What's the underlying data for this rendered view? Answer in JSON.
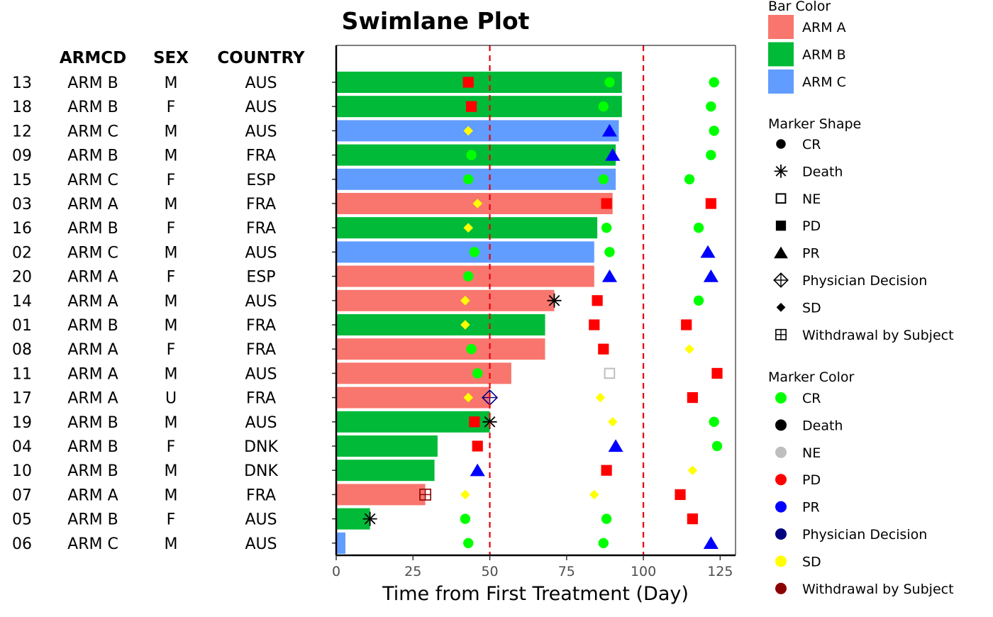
{
  "chart_data": {
    "type": "bar",
    "title": "Swimlane Plot",
    "xlabel": "Time from First Treatment (Day)",
    "ylabel": "",
    "xlim": [
      0,
      130
    ],
    "xticks": [
      0,
      25,
      50,
      75,
      100,
      125
    ],
    "reference_lines": [
      50,
      100
    ],
    "table_headers": [
      "ARMCD",
      "SEX",
      "COUNTRY"
    ],
    "arm_colors": {
      "ARM A": "#f8766d",
      "ARM B": "#00ba38",
      "ARM C": "#619cff"
    },
    "marker_colors": {
      "CR": "#00ff00",
      "Death": "#000000",
      "NE": "#bebebe",
      "PD": "#ff0000",
      "PR": "#0000ff",
      "Physician Decision": "#000080",
      "SD": "#ffff00",
      "Withdrawal by Subject": "#8b0000"
    },
    "marker_shapes": {
      "CR": "circle",
      "Death": "asterisk",
      "NE": "open-square",
      "PD": "square",
      "PR": "triangle",
      "Physician Decision": "crossed-diamond",
      "SD": "diamond",
      "Withdrawal by Subject": "crossed-square"
    },
    "legend": {
      "bar_color_title": "Bar Color",
      "bar_color_items": [
        "ARM A",
        "ARM B",
        "ARM C"
      ],
      "shape_title": "Marker Shape",
      "shape_items": [
        "CR",
        "Death",
        "NE",
        "PD",
        "PR",
        "Physician Decision",
        "SD",
        "Withdrawal by Subject"
      ],
      "color_title": "Marker Color",
      "color_items": [
        "CR",
        "Death",
        "NE",
        "PD",
        "PR",
        "Physician Decision",
        "SD",
        "Withdrawal by Subject"
      ]
    },
    "subjects": [
      {
        "id": "13",
        "arm": "ARM B",
        "sex": "M",
        "country": "AUS",
        "duration": 93,
        "markers": [
          {
            "x": 43,
            "status": "PD"
          },
          {
            "x": 89,
            "status": "CR"
          },
          {
            "x": 123,
            "status": "CR"
          }
        ]
      },
      {
        "id": "18",
        "arm": "ARM B",
        "sex": "F",
        "country": "AUS",
        "duration": 93,
        "markers": [
          {
            "x": 44,
            "status": "PD"
          },
          {
            "x": 87,
            "status": "CR"
          },
          {
            "x": 122,
            "status": "CR"
          }
        ]
      },
      {
        "id": "12",
        "arm": "ARM C",
        "sex": "M",
        "country": "AUS",
        "duration": 92,
        "markers": [
          {
            "x": 43,
            "status": "SD"
          },
          {
            "x": 89,
            "status": "PR"
          },
          {
            "x": 123,
            "status": "CR"
          }
        ]
      },
      {
        "id": "09",
        "arm": "ARM B",
        "sex": "M",
        "country": "FRA",
        "duration": 91,
        "markers": [
          {
            "x": 44,
            "status": "CR"
          },
          {
            "x": 90,
            "status": "PR"
          },
          {
            "x": 122,
            "status": "CR"
          }
        ]
      },
      {
        "id": "15",
        "arm": "ARM C",
        "sex": "F",
        "country": "ESP",
        "duration": 91,
        "markers": [
          {
            "x": 43,
            "status": "CR"
          },
          {
            "x": 87,
            "status": "CR"
          },
          {
            "x": 115,
            "status": "CR"
          }
        ]
      },
      {
        "id": "03",
        "arm": "ARM A",
        "sex": "M",
        "country": "FRA",
        "duration": 90,
        "markers": [
          {
            "x": 46,
            "status": "SD"
          },
          {
            "x": 88,
            "status": "PD"
          },
          {
            "x": 122,
            "status": "PD"
          }
        ]
      },
      {
        "id": "16",
        "arm": "ARM B",
        "sex": "F",
        "country": "FRA",
        "duration": 85,
        "markers": [
          {
            "x": 43,
            "status": "SD"
          },
          {
            "x": 88,
            "status": "CR"
          },
          {
            "x": 118,
            "status": "CR"
          }
        ]
      },
      {
        "id": "02",
        "arm": "ARM C",
        "sex": "M",
        "country": "AUS",
        "duration": 84,
        "markers": [
          {
            "x": 45,
            "status": "CR"
          },
          {
            "x": 89,
            "status": "CR"
          },
          {
            "x": 121,
            "status": "PR"
          }
        ]
      },
      {
        "id": "20",
        "arm": "ARM A",
        "sex": "F",
        "country": "ESP",
        "duration": 84,
        "markers": [
          {
            "x": 43,
            "status": "CR"
          },
          {
            "x": 89,
            "status": "PR"
          },
          {
            "x": 122,
            "status": "PR"
          }
        ]
      },
      {
        "id": "14",
        "arm": "ARM A",
        "sex": "M",
        "country": "AUS",
        "duration": 71,
        "end_event": {
          "x": 71,
          "status": "Death"
        },
        "markers": [
          {
            "x": 42,
            "status": "SD"
          },
          {
            "x": 85,
            "status": "PD"
          },
          {
            "x": 118,
            "status": "CR"
          }
        ]
      },
      {
        "id": "01",
        "arm": "ARM B",
        "sex": "M",
        "country": "FRA",
        "duration": 68,
        "markers": [
          {
            "x": 42,
            "status": "SD"
          },
          {
            "x": 84,
            "status": "PD"
          },
          {
            "x": 114,
            "status": "PD"
          }
        ]
      },
      {
        "id": "08",
        "arm": "ARM A",
        "sex": "F",
        "country": "FRA",
        "duration": 68,
        "markers": [
          {
            "x": 44,
            "status": "CR"
          },
          {
            "x": 87,
            "status": "PD"
          },
          {
            "x": 115,
            "status": "SD"
          }
        ]
      },
      {
        "id": "11",
        "arm": "ARM A",
        "sex": "M",
        "country": "AUS",
        "duration": 57,
        "markers": [
          {
            "x": 46,
            "status": "CR"
          },
          {
            "x": 89,
            "status": "NE"
          },
          {
            "x": 124,
            "status": "PD"
          }
        ]
      },
      {
        "id": "17",
        "arm": "ARM A",
        "sex": "U",
        "country": "FRA",
        "duration": 50,
        "end_event": {
          "x": 50,
          "status": "Physician Decision"
        },
        "markers": [
          {
            "x": 43,
            "status": "SD"
          },
          {
            "x": 86,
            "status": "SD"
          },
          {
            "x": 116,
            "status": "PD"
          }
        ]
      },
      {
        "id": "19",
        "arm": "ARM B",
        "sex": "M",
        "country": "AUS",
        "duration": 50,
        "end_event": {
          "x": 50,
          "status": "Death"
        },
        "markers": [
          {
            "x": 45,
            "status": "PD"
          },
          {
            "x": 90,
            "status": "SD"
          },
          {
            "x": 123,
            "status": "CR"
          }
        ]
      },
      {
        "id": "04",
        "arm": "ARM B",
        "sex": "F",
        "country": "DNK",
        "duration": 33,
        "markers": [
          {
            "x": 46,
            "status": "PD"
          },
          {
            "x": 91,
            "status": "PR"
          },
          {
            "x": 124,
            "status": "CR"
          }
        ]
      },
      {
        "id": "10",
        "arm": "ARM B",
        "sex": "M",
        "country": "DNK",
        "duration": 32,
        "markers": [
          {
            "x": 46,
            "status": "PR"
          },
          {
            "x": 88,
            "status": "PD"
          },
          {
            "x": 116,
            "status": "SD"
          }
        ]
      },
      {
        "id": "07",
        "arm": "ARM A",
        "sex": "M",
        "country": "FRA",
        "duration": 29,
        "end_event": {
          "x": 29,
          "status": "Withdrawal by Subject"
        },
        "markers": [
          {
            "x": 42,
            "status": "SD"
          },
          {
            "x": 84,
            "status": "SD"
          },
          {
            "x": 112,
            "status": "PD"
          }
        ]
      },
      {
        "id": "05",
        "arm": "ARM B",
        "sex": "F",
        "country": "AUS",
        "duration": 11,
        "end_event": {
          "x": 11,
          "status": "Death"
        },
        "markers": [
          {
            "x": 42,
            "status": "CR"
          },
          {
            "x": 88,
            "status": "CR"
          },
          {
            "x": 116,
            "status": "PD"
          }
        ]
      },
      {
        "id": "06",
        "arm": "ARM C",
        "sex": "M",
        "country": "AUS",
        "duration": 3,
        "markers": [
          {
            "x": 43,
            "status": "CR"
          },
          {
            "x": 87,
            "status": "CR"
          },
          {
            "x": 122,
            "status": "PR"
          }
        ]
      }
    ]
  }
}
